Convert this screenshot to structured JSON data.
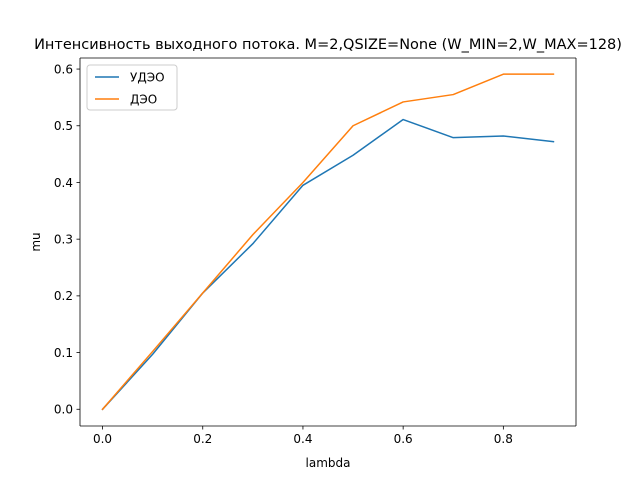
{
  "chart_data": {
    "type": "line",
    "title": "Интенсивность выходного потока. M=2,QSIZE=None (W_MIN=2,W_MAX=128)",
    "xlabel": "lambda",
    "ylabel": "mu",
    "xlim": [
      -0.045,
      0.945
    ],
    "ylim": [
      -0.0295,
      0.6195
    ],
    "xticks": [
      0.0,
      0.2,
      0.4,
      0.6,
      0.8
    ],
    "xtick_labels": [
      "0.0",
      "0.2",
      "0.4",
      "0.6",
      "0.8"
    ],
    "yticks": [
      0.0,
      0.1,
      0.2,
      0.3,
      0.4,
      0.5,
      0.6
    ],
    "ytick_labels": [
      "0.0",
      "0.1",
      "0.2",
      "0.3",
      "0.4",
      "0.5",
      "0.6"
    ],
    "grid": false,
    "legend_position": "top-left",
    "x": [
      0.0,
      0.1,
      0.2,
      0.3,
      0.4,
      0.5,
      0.6,
      0.7,
      0.8,
      0.9
    ],
    "series": [
      {
        "name": "УДЭО",
        "color": "#1f77b4",
        "values": [
          0.0,
          0.097,
          0.205,
          0.292,
          0.395,
          0.448,
          0.511,
          0.479,
          0.482,
          0.472
        ]
      },
      {
        "name": "ДЭО",
        "color": "#ff7f0e",
        "values": [
          0.0,
          0.102,
          0.205,
          0.308,
          0.4,
          0.5,
          0.542,
          0.555,
          0.591,
          0.591
        ]
      }
    ]
  }
}
